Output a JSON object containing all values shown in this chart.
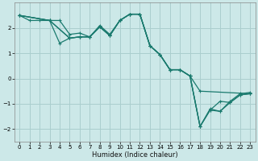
{
  "xlabel": "Humidex (Indice chaleur)",
  "background_color": "#cce8e8",
  "grid_color": "#aacece",
  "line_color": "#1a7a6e",
  "xlim": [
    -0.5,
    23.5
  ],
  "ylim": [
    -2.5,
    3.0
  ],
  "yticks": [
    -2,
    -1,
    0,
    1,
    2
  ],
  "xticks": [
    0,
    1,
    2,
    3,
    4,
    5,
    6,
    7,
    8,
    9,
    10,
    11,
    12,
    13,
    14,
    15,
    16,
    17,
    18,
    19,
    20,
    21,
    22,
    23
  ],
  "s1_x": [
    0,
    1,
    2,
    3,
    4,
    5,
    6,
    7,
    8,
    9,
    10,
    11,
    12,
    13,
    14,
    15,
    16,
    17,
    18,
    23
  ],
  "s1_y": [
    2.5,
    2.3,
    2.3,
    2.3,
    2.3,
    1.75,
    1.8,
    1.65,
    2.1,
    1.75,
    2.3,
    2.55,
    2.55,
    1.3,
    0.95,
    0.35,
    0.35,
    0.1,
    -0.5,
    -0.6
  ],
  "s2_x": [
    0,
    3,
    4,
    5,
    6,
    7,
    8,
    9,
    10,
    11,
    12,
    13,
    14,
    15,
    16,
    17,
    18,
    19,
    20,
    21,
    22,
    23
  ],
  "s2_y": [
    2.5,
    2.3,
    1.4,
    1.6,
    1.65,
    1.65,
    2.05,
    1.7,
    2.3,
    2.55,
    2.55,
    1.3,
    0.95,
    0.35,
    0.35,
    0.1,
    -1.9,
    -1.25,
    -0.9,
    -0.95,
    -0.65,
    -0.6
  ],
  "s3_x": [
    0,
    3,
    5,
    6,
    7,
    8,
    9,
    10,
    11,
    12,
    13,
    14,
    15,
    16,
    17,
    18,
    19,
    20,
    21,
    22,
    23
  ],
  "s3_y": [
    2.5,
    2.3,
    1.6,
    1.65,
    1.65,
    2.05,
    1.7,
    2.3,
    2.55,
    2.55,
    1.3,
    0.95,
    0.35,
    0.35,
    0.1,
    -1.9,
    -1.25,
    -1.3,
    -0.95,
    -0.65,
    -0.6
  ],
  "s4_x": [
    0,
    3,
    5,
    6,
    7,
    8,
    9,
    10,
    11,
    12,
    13,
    14,
    15,
    16,
    17,
    18,
    19,
    20,
    21,
    22,
    23
  ],
  "s4_y": [
    2.5,
    2.3,
    1.6,
    1.65,
    1.65,
    2.05,
    1.7,
    2.3,
    2.55,
    2.55,
    1.3,
    0.95,
    0.35,
    0.35,
    0.1,
    -1.9,
    -1.2,
    -1.3,
    -0.9,
    -0.6,
    -0.55
  ]
}
